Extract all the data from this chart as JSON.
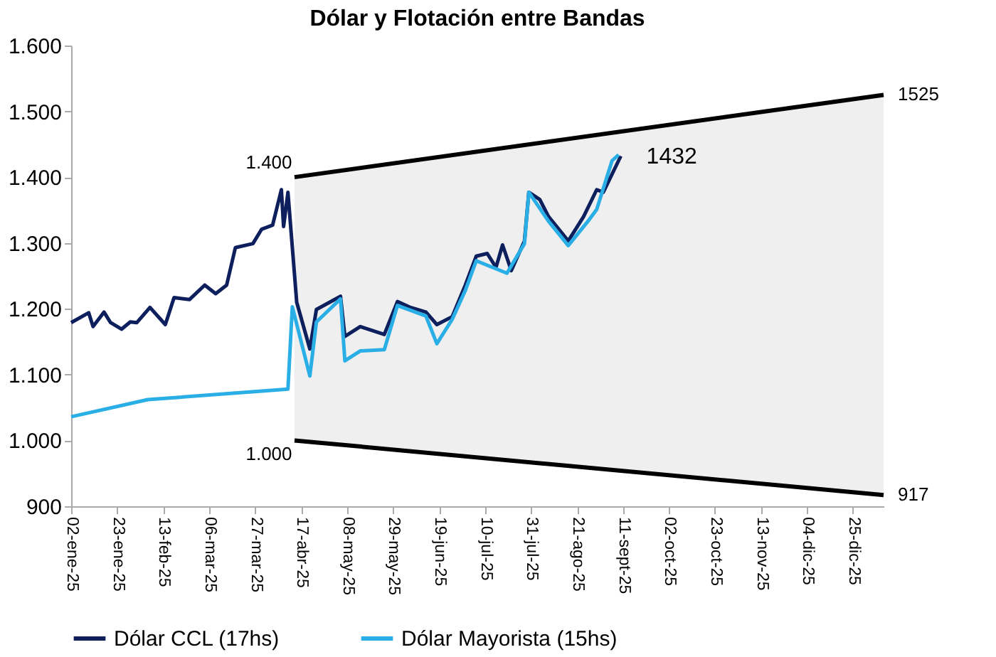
{
  "chart_data": {
    "type": "line",
    "title": "Dólar y Flotación entre Bandas",
    "series": [
      {
        "name": "Dólar CCL (17hs)",
        "color": "#0d1f5c",
        "x": [
          "2025-01-02",
          "2025-01-10",
          "2025-01-12",
          "2025-01-17",
          "2025-01-20",
          "2025-01-25",
          "2025-01-29",
          "2025-02-01",
          "2025-02-07",
          "2025-02-14",
          "2025-02-18",
          "2025-02-25",
          "2025-03-04",
          "2025-03-09",
          "2025-03-14",
          "2025-03-18",
          "2025-03-26",
          "2025-03-30",
          "2025-04-04",
          "2025-04-08",
          "2025-04-09",
          "2025-04-11",
          "2025-04-15",
          "2025-04-21",
          "2025-04-24",
          "2025-05-05",
          "2025-05-07",
          "2025-05-14",
          "2025-05-25",
          "2025-05-31",
          "2025-06-06",
          "2025-06-13",
          "2025-06-18",
          "2025-06-25",
          "2025-07-01",
          "2025-07-06",
          "2025-07-11",
          "2025-07-15",
          "2025-07-18",
          "2025-07-22",
          "2025-07-28",
          "2025-07-30",
          "2025-08-04",
          "2025-08-08",
          "2025-08-17",
          "2025-08-24",
          "2025-08-30",
          "2025-09-02",
          "2025-09-10"
        ],
        "values": [
          1179,
          1194,
          1173,
          1195,
          1179,
          1169,
          1180,
          1179,
          1202,
          1176,
          1217,
          1214,
          1236,
          1223,
          1236,
          1293,
          1299,
          1321,
          1327,
          1381,
          1325,
          1377,
          1210,
          1139,
          1199,
          1219,
          1158,
          1173,
          1161,
          1211,
          1202,
          1195,
          1176,
          1188,
          1236,
          1280,
          1284,
          1263,
          1297,
          1258,
          1303,
          1377,
          1366,
          1340,
          1303,
          1340,
          1381,
          1377,
          1432
        ]
      },
      {
        "name": "Dólar Mayorista (15hs)",
        "color": "#29aee6",
        "x": [
          "2025-01-02",
          "2025-02-06",
          "2025-04-11",
          "2025-04-13",
          "2025-04-21",
          "2025-04-24",
          "2025-05-05",
          "2025-05-07",
          "2025-05-14",
          "2025-05-25",
          "2025-05-31",
          "2025-06-13",
          "2025-06-18",
          "2025-06-25",
          "2025-07-01",
          "2025-07-06",
          "2025-07-20",
          "2025-07-28",
          "2025-07-30",
          "2025-08-08",
          "2025-08-17",
          "2025-08-26",
          "2025-08-30",
          "2025-09-06",
          "2025-09-09"
        ],
        "values": [
          1036,
          1062,
          1078,
          1203,
          1098,
          1180,
          1215,
          1121,
          1136,
          1138,
          1205,
          1189,
          1147,
          1184,
          1228,
          1273,
          1254,
          1299,
          1377,
          1333,
          1296,
          1333,
          1351,
          1425,
          1434
        ]
      },
      {
        "type": "line",
        "color": "#000000",
        "x": [
          "2025-04-14",
          "2026-01-08"
        ],
        "values": [
          1400,
          1525
        ],
        "lower": [
          1000,
          917
        ],
        "upper": [
          1400,
          1525
        ]
      },
      {
        "type": "line",
        "color": "#000000",
        "x": [
          "2025-04-14",
          "2026-01-08"
        ],
        "values": [
          1000,
          917
        ]
      }
    ],
    "xlim": [
      "2025-01-02",
      "2026-01-08"
    ],
    "xticks": [
      {
        "value": "2025-01-02",
        "label": "02-ene-25"
      },
      {
        "value": "2025-01-23",
        "label": "23-ene-25"
      },
      {
        "value": "2025-02-13",
        "label": "13-feb-25"
      },
      {
        "value": "2025-03-06",
        "label": "06-mar-25"
      },
      {
        "value": "2025-03-27",
        "label": "27-mar-25"
      },
      {
        "value": "2025-04-17",
        "label": "17-abr-25"
      },
      {
        "value": "2025-05-08",
        "label": "08-may-25"
      },
      {
        "value": "2025-05-29",
        "label": "29-may-25"
      },
      {
        "value": "2025-06-19",
        "label": "19-jun-25"
      },
      {
        "value": "2025-07-10",
        "label": "10-jul-25"
      },
      {
        "value": "2025-07-31",
        "label": "31-jul-25"
      },
      {
        "value": "2025-08-21",
        "label": "21-ago-25"
      },
      {
        "value": "2025-09-11",
        "label": "11-sept-25"
      },
      {
        "value": "2025-10-02",
        "label": "02-oct-25"
      },
      {
        "value": "2025-10-23",
        "label": "23-oct-25"
      },
      {
        "value": "2025-11-13",
        "label": "13-nov-25"
      },
      {
        "value": "2025-12-04",
        "label": "04-dic-25"
      },
      {
        "value": "2025-12-25",
        "label": "25-dic-25"
      }
    ],
    "ylim": [
      900,
      1600
    ],
    "yticks": [
      900,
      {
        "value": 1000,
        "label": "1.000"
      },
      {
        "value": 1100,
        "label": "1.100"
      },
      {
        "value": 1200,
        "label": "1.200"
      },
      {
        "value": 1300,
        "label": "1.300"
      },
      {
        "value": 1400,
        "label": "1.400"
      },
      {
        "value": 1500,
        "label": "1.500"
      },
      {
        "value": 1600,
        "label": "1.600"
      }
    ],
    "annotations": [
      {
        "text": "1.400",
        "x": "2025-04-14",
        "y": 1400
      },
      {
        "text": "1.000",
        "x": "2025-04-14",
        "y": 1000
      },
      {
        "text": "1525",
        "x": "2026-01-08",
        "y": 1525
      },
      {
        "text": "917",
        "x": "2026-01-08",
        "y": 917
      },
      {
        "text": "1432",
        "x": "2025-09-10",
        "y": 1432
      }
    ],
    "legend": "bottom",
    "grid": false,
    "line_style": "solid",
    "marker": "none"
  }
}
